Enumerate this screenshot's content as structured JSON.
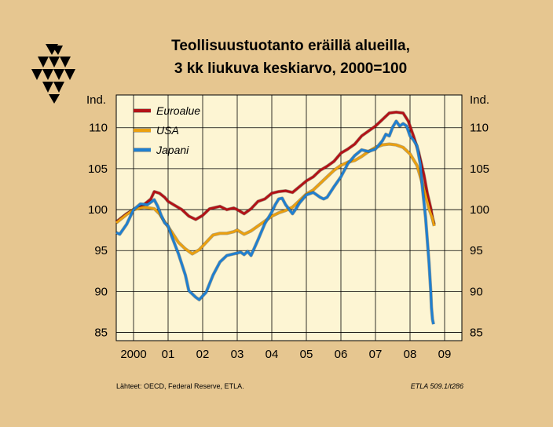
{
  "chart_data": {
    "type": "line",
    "title": "Teollisuustuotanto eräillä alueilla,",
    "subtitle": "3 kk liukuva keskiarvo, 2000=100",
    "ylabel_left": "Ind.",
    "ylabel_right": "Ind.",
    "ylim": [
      84,
      114
    ],
    "yticks": [
      85,
      90,
      95,
      100,
      105,
      110
    ],
    "xlim": [
      1999.5,
      2009.5
    ],
    "xtick_labels": [
      "2000",
      "01",
      "02",
      "03",
      "04",
      "05",
      "06",
      "07",
      "08",
      "09"
    ],
    "grid": true,
    "legend_position": "top-left",
    "series": [
      {
        "name": "Euroalue",
        "color": "#b31217",
        "x": [
          1999.5,
          1999.8,
          2000.0,
          2000.3,
          2000.5,
          2000.6,
          2000.75,
          2000.9,
          2001.0,
          2001.2,
          2001.4,
          2001.6,
          2001.8,
          2002.0,
          2002.2,
          2002.5,
          2002.7,
          2002.9,
          2003.0,
          2003.2,
          2003.4,
          2003.6,
          2003.8,
          2004.0,
          2004.2,
          2004.4,
          2004.6,
          2004.8,
          2005.0,
          2005.2,
          2005.4,
          2005.6,
          2005.8,
          2006.0,
          2006.2,
          2006.4,
          2006.6,
          2006.8,
          2007.0,
          2007.2,
          2007.4,
          2007.6,
          2007.8,
          2007.95,
          2008.1,
          2008.25,
          2008.4,
          2008.5,
          2008.6,
          2008.65,
          2008.7
        ],
        "values": [
          98.5,
          99.5,
          100.0,
          100.6,
          101.3,
          102.2,
          102.0,
          101.5,
          101.0,
          100.5,
          100.0,
          99.2,
          98.8,
          99.3,
          100.1,
          100.4,
          100.0,
          100.2,
          100.0,
          99.5,
          100.1,
          101.0,
          101.3,
          102.0,
          102.2,
          102.3,
          102.1,
          102.8,
          103.5,
          104.0,
          104.8,
          105.3,
          105.9,
          106.9,
          107.4,
          108.0,
          109.0,
          109.6,
          110.2,
          111.0,
          111.8,
          111.9,
          111.8,
          110.8,
          109.0,
          107.0,
          104.3,
          102.0,
          100.2,
          99.0,
          98.2
        ]
      },
      {
        "name": "USA",
        "color": "#eba00f",
        "x": [
          1999.5,
          1999.8,
          2000.0,
          2000.3,
          2000.6,
          2000.75,
          2000.9,
          2001.1,
          2001.3,
          2001.5,
          2001.7,
          2001.9,
          2002.1,
          2002.3,
          2002.5,
          2002.7,
          2002.9,
          2003.0,
          2003.2,
          2003.4,
          2003.6,
          2003.8,
          2004.0,
          2004.2,
          2004.4,
          2004.6,
          2004.8,
          2005.0,
          2005.2,
          2005.4,
          2005.6,
          2005.8,
          2006.0,
          2006.2,
          2006.4,
          2006.6,
          2006.8,
          2007.0,
          2007.2,
          2007.4,
          2007.6,
          2007.8,
          2008.0,
          2008.2,
          2008.3,
          2008.45,
          2008.55,
          2008.65,
          2008.7
        ],
        "values": [
          98.4,
          99.4,
          100.0,
          100.3,
          100.1,
          99.5,
          98.5,
          97.3,
          96.0,
          95.2,
          94.6,
          95.1,
          96.0,
          96.9,
          97.1,
          97.1,
          97.3,
          97.5,
          97.0,
          97.4,
          98.0,
          98.6,
          99.2,
          99.6,
          99.9,
          100.3,
          101.1,
          101.9,
          102.4,
          103.2,
          104.0,
          104.8,
          105.4,
          105.8,
          106.0,
          106.5,
          107.1,
          107.6,
          107.9,
          108.0,
          107.9,
          107.6,
          106.8,
          105.4,
          104.0,
          101.8,
          100.1,
          98.9,
          98.0
        ]
      },
      {
        "name": "Japani",
        "color": "#1f7fd0",
        "x": [
          1999.5,
          1999.6,
          1999.8,
          2000.0,
          2000.2,
          2000.4,
          2000.6,
          2000.7,
          2000.8,
          2000.9,
          2001.0,
          2001.1,
          2001.3,
          2001.5,
          2001.6,
          2001.8,
          2001.9,
          2002.1,
          2002.3,
          2002.5,
          2002.7,
          2002.9,
          2003.0,
          2003.1,
          2003.2,
          2003.3,
          2003.4,
          2003.6,
          2003.8,
          2004.0,
          2004.1,
          2004.2,
          2004.3,
          2004.4,
          2004.6,
          2004.7,
          2004.8,
          2004.9,
          2005.0,
          2005.2,
          2005.4,
          2005.5,
          2005.6,
          2005.8,
          2006.0,
          2006.2,
          2006.4,
          2006.6,
          2006.8,
          2007.0,
          2007.2,
          2007.3,
          2007.4,
          2007.5,
          2007.6,
          2007.7,
          2007.8,
          2007.9,
          2008.0,
          2008.1,
          2008.2,
          2008.3,
          2008.35,
          2008.45,
          2008.55,
          2008.6,
          2008.62,
          2008.65,
          2008.68
        ],
        "values": [
          97.2,
          97.0,
          98.2,
          100.0,
          100.7,
          100.6,
          101.2,
          100.4,
          99.3,
          98.4,
          98.0,
          96.8,
          94.6,
          92.0,
          90.1,
          89.3,
          89.0,
          89.9,
          92.0,
          93.6,
          94.4,
          94.6,
          94.7,
          94.8,
          94.5,
          94.9,
          94.4,
          96.3,
          98.3,
          99.7,
          100.6,
          101.3,
          101.4,
          100.6,
          99.5,
          100.1,
          100.8,
          101.3,
          101.8,
          102.1,
          101.5,
          101.3,
          101.5,
          102.8,
          104.0,
          105.6,
          106.6,
          107.3,
          107.1,
          107.4,
          108.4,
          109.2,
          109.0,
          110.1,
          110.8,
          110.2,
          110.5,
          110.2,
          109.0,
          108.5,
          107.8,
          105.5,
          103.0,
          99.0,
          93.5,
          90.0,
          88.0,
          86.6,
          86.0
        ]
      }
    ]
  },
  "footer": {
    "sources": "Lähteet:   OECD, Federal Reserve, ETLA.",
    "code": "ETLA 509.1/t286"
  }
}
